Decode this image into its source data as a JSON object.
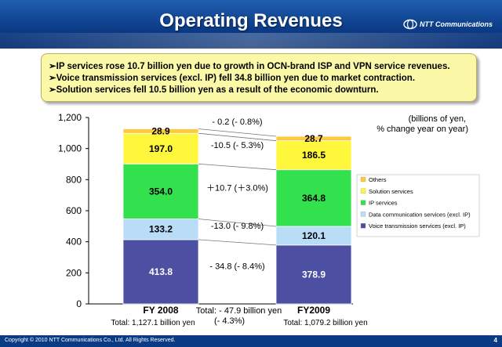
{
  "header": {
    "title": "Operating Revenues",
    "logo_text": "NTT Communications",
    "logo_icon": "ntt-logo-icon"
  },
  "summary": {
    "bullets": [
      "➢IP services rose 10.7 billion yen due to growth in OCN-brand ISP and VPN service revenues.",
      "➢Voice transmission services (excl. IP) fell 34.8 billion yen due to market contraction.",
      "➢Solution services fell 10.5 billion yen as a result of the economic downturn."
    ]
  },
  "chart_data": {
    "type": "bar",
    "stacked": true,
    "categories": [
      "FY 2008",
      "FY2009"
    ],
    "unit_note": "(billions of yen,\n% change year on year)",
    "ylim": [
      0,
      1200
    ],
    "yticks": [
      0,
      200,
      400,
      600,
      800,
      1000,
      1200
    ],
    "ytick_labels": [
      "0",
      "200",
      "400",
      "600",
      "800",
      "1,000",
      "1,200"
    ],
    "series": [
      {
        "name": "Voice transmission services (excl. IP)",
        "values": [
          413.8,
          378.9
        ],
        "labels": [
          "413.8",
          "378.9"
        ],
        "color": "#4d4fa3"
      },
      {
        "name": "Data communication services (excl. IP)",
        "values": [
          133.2,
          120.1
        ],
        "labels": [
          "133.2",
          "120.1"
        ],
        "color": "#b9dcf7"
      },
      {
        "name": "IP services",
        "values": [
          354.0,
          364.8
        ],
        "labels": [
          "354.0",
          "364.8"
        ],
        "color": "#33e04e"
      },
      {
        "name": "Solution services",
        "values": [
          197.0,
          186.5
        ],
        "labels": [
          "197.0",
          "186.5"
        ],
        "color": "#fff73c"
      },
      {
        "name": "Others",
        "values": [
          28.9,
          28.7
        ],
        "labels": [
          "28.9",
          "28.7"
        ],
        "color": "#ffc93c"
      }
    ],
    "changes": [
      "- 34.8 (- 8.4%)",
      "-13.0 (- 9.8%)",
      "＋10.7 (＋3.0%)",
      "-10.5 (- 5.3%)",
      "- 0.2 (- 0.8%)"
    ],
    "totals": [
      "Total: 1,127.1 billion yen",
      "Total: 1,079.2 billion yen"
    ],
    "total_change": [
      "Total: - 47.9 billion yen",
      "(- 4.3%)"
    ],
    "legend_position": "right"
  },
  "footer": {
    "copyright": "Copyright © 2010 NTT Communications Co., Ltd. All Rights Reserved.",
    "page": "4"
  }
}
